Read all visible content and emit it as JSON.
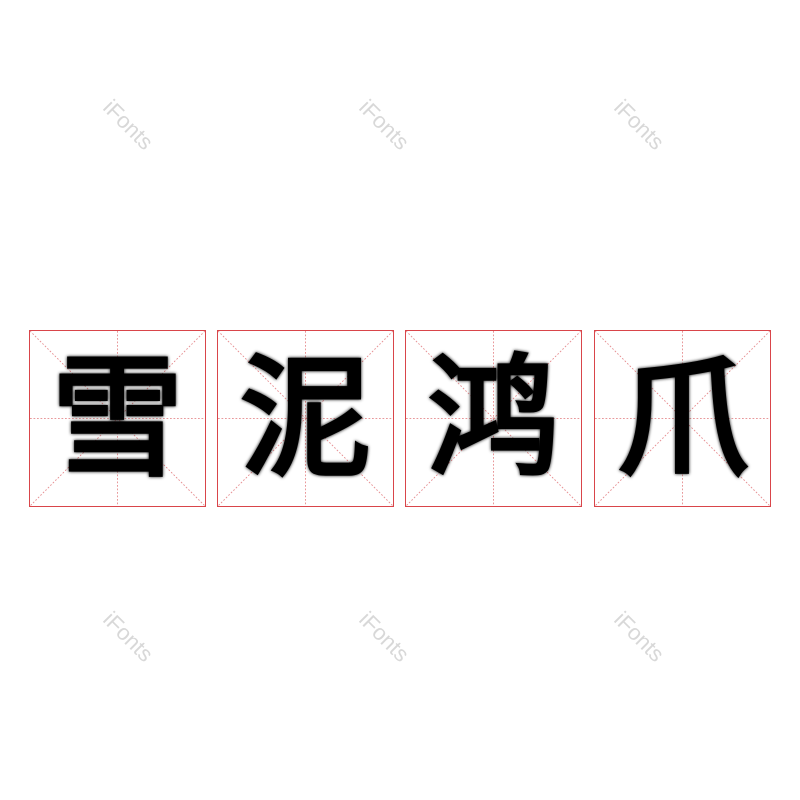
{
  "watermark": "iFonts",
  "characters": [
    "雪",
    "泥",
    "鸿",
    "爪"
  ],
  "colors": {
    "grid": "#d9454a",
    "ink": "#000000",
    "watermark": "#d8d8d8"
  }
}
